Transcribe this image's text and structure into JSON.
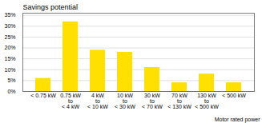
{
  "chart_data": {
    "type": "bar",
    "title": "Savings potential",
    "xlabel": "Motor rated power",
    "categories": [
      "< 0.75 kW",
      "0.75 kW\nto\n< 4 kW",
      "4 kW\nto\n< 10 kW",
      "10 kW\nto\n< 30 kW",
      "30 kW\nto\n< 70 kW",
      "70 kW\nto\n< 130 kW",
      "130 kW\nto\n< 500 kW",
      "< 500 kW"
    ],
    "values": [
      6,
      32,
      19,
      18,
      11,
      4,
      8,
      4
    ],
    "color": "#FFE000",
    "ylim": [
      0,
      36
    ],
    "yticks": [
      {
        "value": 0,
        "label": "0%"
      },
      {
        "value": 5,
        "label": "5%"
      },
      {
        "value": 10,
        "label": "10%"
      },
      {
        "value": 15,
        "label": "15%"
      },
      {
        "value": 20,
        "label": "20%"
      },
      {
        "value": 25,
        "label": "25%"
      },
      {
        "value": 30,
        "label": "30%"
      },
      {
        "value": 35,
        "label": "35%"
      }
    ],
    "grid": true
  }
}
